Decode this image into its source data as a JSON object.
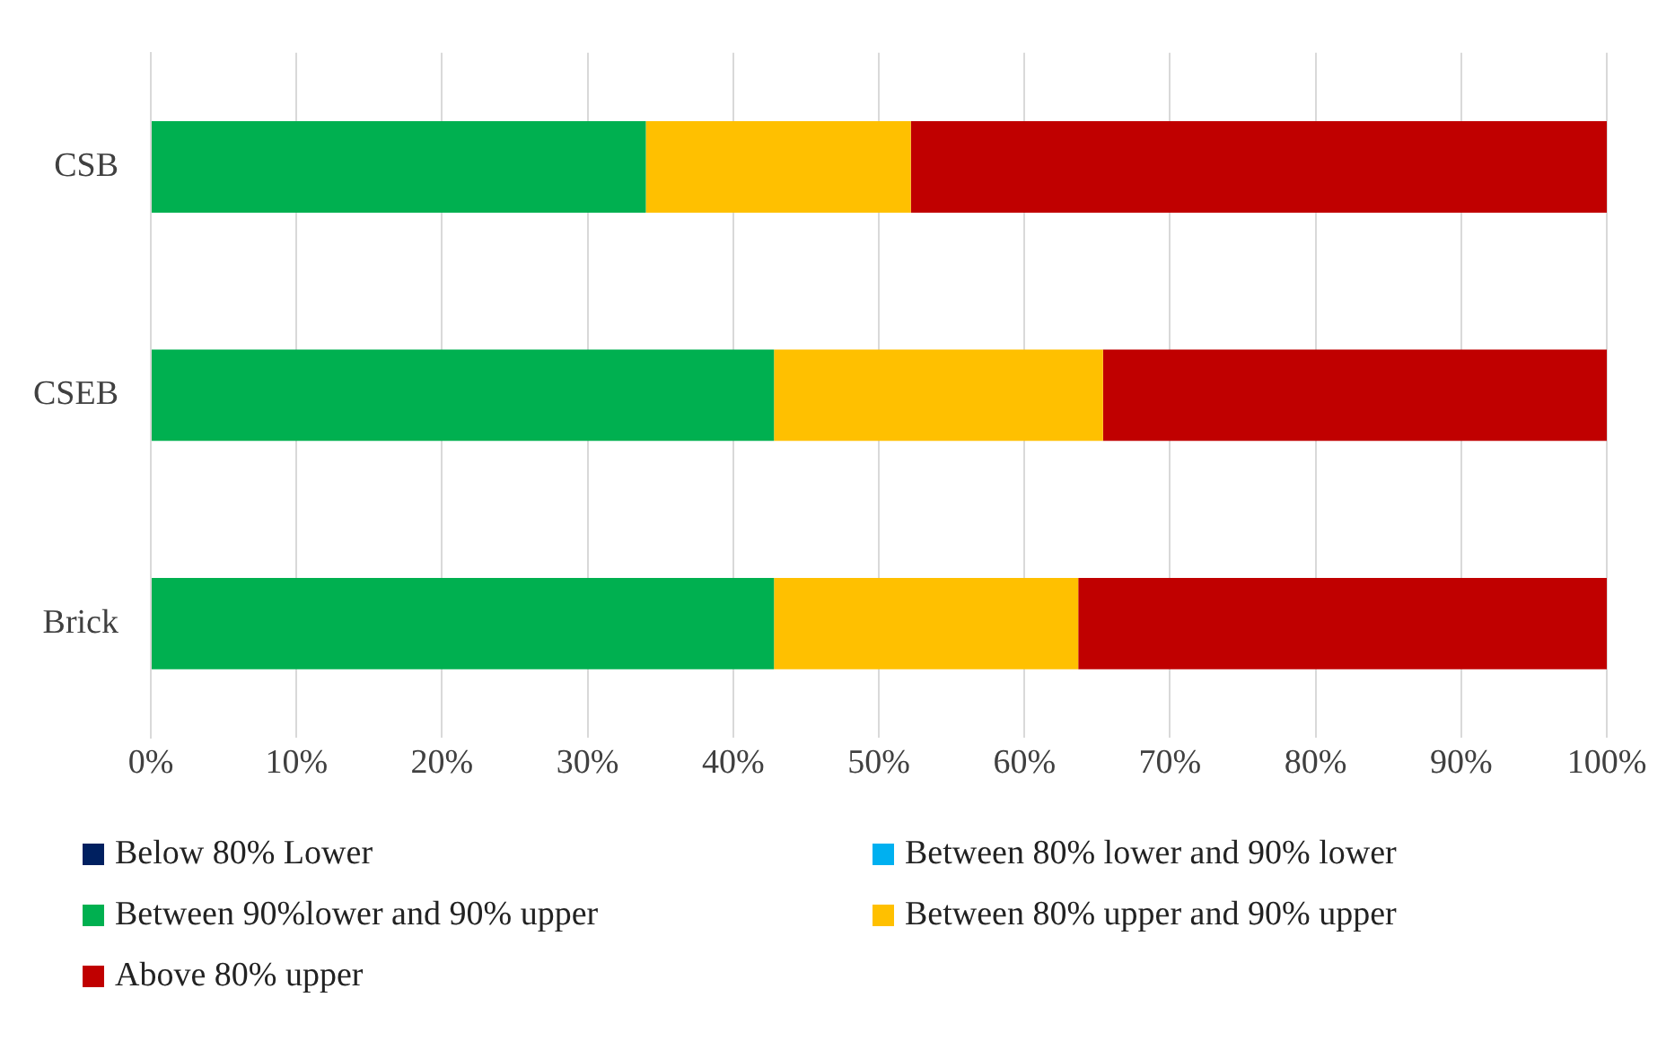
{
  "chart_data": {
    "type": "bar",
    "orientation": "horizontal",
    "stacked": true,
    "categories": [
      "CSB",
      "CSEB",
      "Brick"
    ],
    "series": [
      {
        "name": "Below 80% Lower",
        "color": "#002060",
        "values": [
          0,
          0,
          0
        ]
      },
      {
        "name": "Between 80% lower and 90% lower",
        "color": "#00b0f0",
        "values": [
          0,
          0,
          0
        ]
      },
      {
        "name": "Between 90%lower and 90% upper",
        "color": "#00b050",
        "values": [
          34.0,
          42.8,
          42.8
        ]
      },
      {
        "name": "Between 80% upper and 90% upper",
        "color": "#ffc000",
        "values": [
          18.2,
          22.6,
          20.9
        ]
      },
      {
        "name": "Above 80% upper",
        "color": "#c00000",
        "values": [
          47.8,
          34.6,
          36.3
        ]
      }
    ],
    "xlim": [
      0,
      100
    ],
    "xticks": [
      {
        "value": 0,
        "label": "0%"
      },
      {
        "value": 10,
        "label": "10%"
      },
      {
        "value": 20,
        "label": "20%"
      },
      {
        "value": 30,
        "label": "30%"
      },
      {
        "value": 40,
        "label": "40%"
      },
      {
        "value": 50,
        "label": "50%"
      },
      {
        "value": 60,
        "label": "60%"
      },
      {
        "value": 70,
        "label": "70%"
      },
      {
        "value": 80,
        "label": "80%"
      },
      {
        "value": 90,
        "label": "90%"
      },
      {
        "value": 100,
        "label": "100%"
      }
    ],
    "grid": "x",
    "legend": "bottom"
  }
}
